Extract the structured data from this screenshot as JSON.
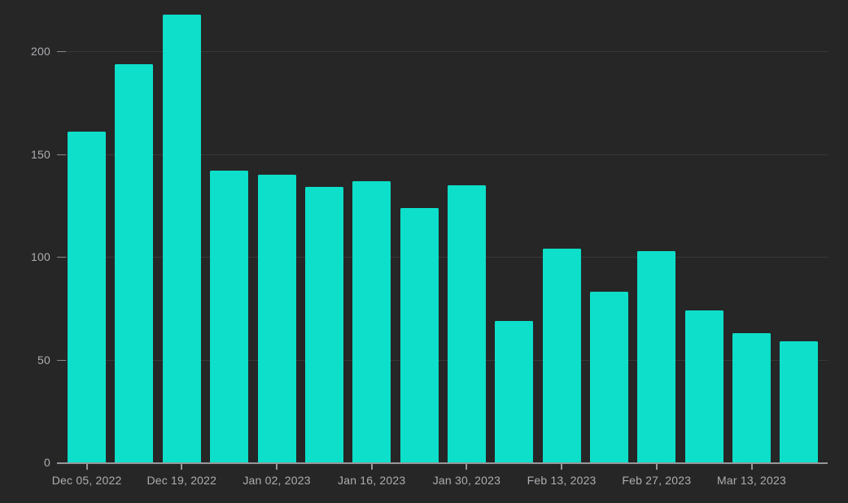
{
  "chart_data": {
    "type": "bar",
    "title": "",
    "xlabel": "",
    "ylabel": "",
    "bar_count": 16,
    "values": [
      161,
      194,
      218,
      142,
      140,
      134,
      137,
      124,
      135,
      69,
      104,
      83,
      103,
      74,
      63,
      59
    ],
    "x_tick_labels": [
      "Dec 05, 2022",
      "Dec 19, 2022",
      "Jan 02, 2023",
      "Jan 16, 2023",
      "Jan 30, 2023",
      "Feb 13, 2023",
      "Feb 27, 2023",
      "Mar 13, 2023"
    ],
    "x_tick_bar_indices": [
      0,
      2,
      4,
      6,
      8,
      10,
      12,
      14
    ],
    "y_ticks": [
      0,
      50,
      100,
      150,
      200
    ],
    "ylim": [
      0,
      225
    ],
    "grid": true,
    "legend": "none",
    "colors": {
      "bar": "#0ddfca",
      "background": "#262626",
      "gridline": "rgba(255,255,255,0.09)",
      "axis_line": "#97979c",
      "tick": "#8a8a8f",
      "label": "#aeaeb3"
    }
  }
}
